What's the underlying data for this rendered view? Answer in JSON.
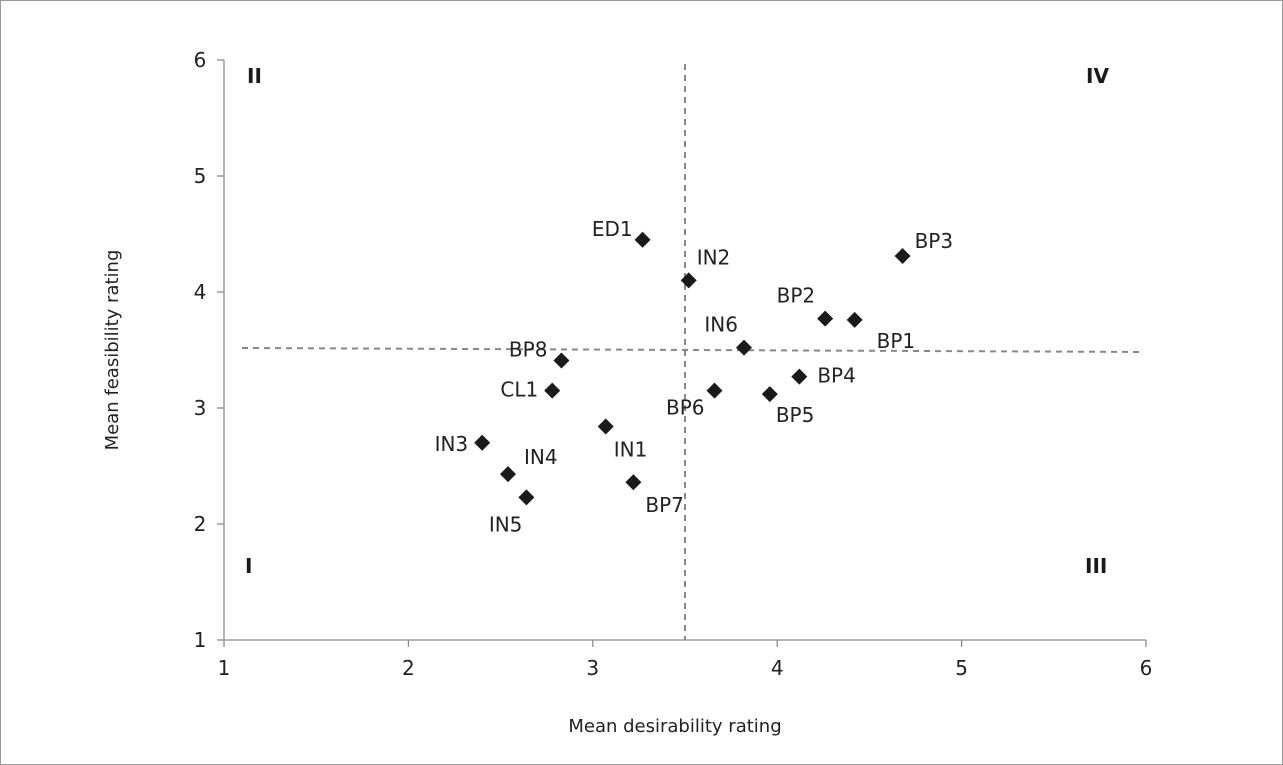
{
  "chart_data": {
    "type": "scatter",
    "title": "",
    "xlabel": "Mean desirability rating",
    "ylabel": "Mean feasibility rating",
    "xlim": [
      1,
      6
    ],
    "ylim": [
      1,
      6
    ],
    "x_ticks": [
      "1",
      "2",
      "3",
      "4",
      "5",
      "6"
    ],
    "y_ticks": [
      "1",
      "2",
      "3",
      "4",
      "5",
      "6"
    ],
    "grid": false,
    "legend": "none",
    "marker": "diamond",
    "marker_color": "#1a1a1a",
    "reference_line_color": "#888888",
    "reference_lines": {
      "vertical_x": 3.5,
      "horizontal_y": 3.5
    },
    "quadrants": {
      "bottom_left": "I",
      "top_left": "II",
      "bottom_right": "III",
      "top_right": "IV"
    },
    "points": [
      {
        "label": "ED1",
        "x": 3.27,
        "y": 4.45
      },
      {
        "label": "IN2",
        "x": 3.52,
        "y": 4.1
      },
      {
        "label": "BP3",
        "x": 4.68,
        "y": 4.31
      },
      {
        "label": "BP2",
        "x": 4.26,
        "y": 3.77
      },
      {
        "label": "BP1",
        "x": 4.42,
        "y": 3.76
      },
      {
        "label": "IN6",
        "x": 3.82,
        "y": 3.52
      },
      {
        "label": "BP8",
        "x": 2.83,
        "y": 3.41
      },
      {
        "label": "CL1",
        "x": 2.78,
        "y": 3.15
      },
      {
        "label": "BP4",
        "x": 4.12,
        "y": 3.27
      },
      {
        "label": "BP6",
        "x": 3.66,
        "y": 3.15
      },
      {
        "label": "BP5",
        "x": 3.96,
        "y": 3.12
      },
      {
        "label": "IN1",
        "x": 3.07,
        "y": 2.84
      },
      {
        "label": "IN3",
        "x": 2.4,
        "y": 2.7
      },
      {
        "label": "IN4",
        "x": 2.54,
        "y": 2.43
      },
      {
        "label": "IN5",
        "x": 2.64,
        "y": 2.23
      },
      {
        "label": "BP7",
        "x": 3.22,
        "y": 2.36
      }
    ]
  }
}
